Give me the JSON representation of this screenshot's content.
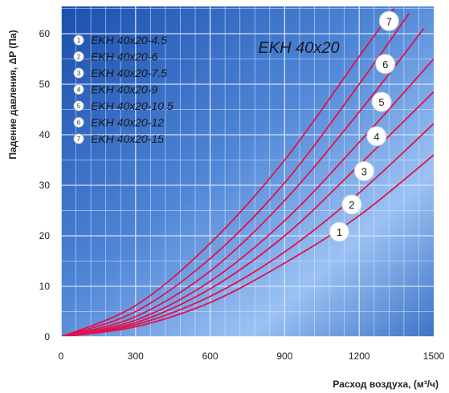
{
  "chart_data": {
    "type": "line",
    "title": "EKH 40x20",
    "xlabel": "Расход воздуха, (м³/ч)",
    "ylabel": "Падение давления, ΔP (Па)",
    "xlim": [
      0,
      1500
    ],
    "ylim": [
      0,
      65
    ],
    "x_ticks": [
      0,
      300,
      600,
      900,
      1200,
      1500
    ],
    "y_ticks": [
      0,
      10,
      20,
      30,
      40,
      50,
      60
    ],
    "grid": true,
    "legend_position": "top-left",
    "colors": {
      "plot_background": "#1f57b8",
      "plot_background_light": "#6fa2e6",
      "grid": "#d8e6ff",
      "curve": "#e0114d",
      "marker_fill": "#ffffff",
      "marker_border": "#e0114d",
      "text": "#222222"
    },
    "series": [
      {
        "name": "EKH 40x20-4.5",
        "marker": "1",
        "x": [
          0,
          300,
          600,
          900,
          1200,
          1500
        ],
        "y": [
          0,
          2.0,
          6.8,
          14.6,
          24.0,
          36.0
        ]
      },
      {
        "name": "EKH 40x20-6",
        "marker": "2",
        "x": [
          0,
          300,
          600,
          900,
          1200,
          1500
        ],
        "y": [
          0,
          2.4,
          8.0,
          16.8,
          28.5,
          42.2
        ]
      },
      {
        "name": "EKH 40x20-7.5",
        "marker": "3",
        "x": [
          0,
          300,
          600,
          900,
          1200,
          1500
        ],
        "y": [
          0,
          2.8,
          9.5,
          20.0,
          34.0,
          48.5
        ]
      },
      {
        "name": "EKH 40x20-9",
        "marker": "4",
        "x": [
          0,
          300,
          600,
          900,
          1200,
          1500
        ],
        "y": [
          0,
          3.3,
          11.0,
          23.0,
          38.5,
          55.0
        ]
      },
      {
        "name": "EKH 40x20-10.5",
        "marker": "5",
        "x": [
          0,
          300,
          600,
          900,
          1200,
          1460
        ],
        "y": [
          0,
          4.0,
          13.0,
          27.0,
          44.5,
          61.0
        ]
      },
      {
        "name": "EKH 40x20-12",
        "marker": "6",
        "x": [
          0,
          300,
          600,
          900,
          1200,
          1400
        ],
        "y": [
          0,
          5.0,
          15.5,
          30.5,
          50.0,
          64.0
        ]
      },
      {
        "name": "EKH 40x20-15",
        "marker": "7",
        "x": [
          0,
          300,
          600,
          900,
          1200,
          1340
        ],
        "y": [
          0,
          6.2,
          18.5,
          35.0,
          55.5,
          65.0
        ]
      }
    ],
    "marker_positions": [
      {
        "label": "1",
        "x": 1120,
        "y": 20.8
      },
      {
        "label": "2",
        "x": 1170,
        "y": 26.2
      },
      {
        "label": "3",
        "x": 1220,
        "y": 32.8
      },
      {
        "label": "4",
        "x": 1270,
        "y": 39.7
      },
      {
        "label": "5",
        "x": 1290,
        "y": 46.5
      },
      {
        "label": "6",
        "x": 1305,
        "y": 54.0
      },
      {
        "label": "7",
        "x": 1320,
        "y": 62.5
      }
    ]
  }
}
